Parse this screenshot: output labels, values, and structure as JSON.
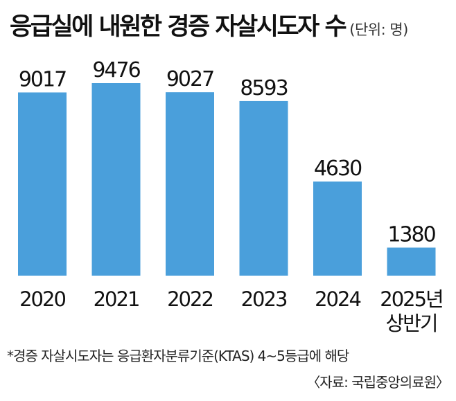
{
  "chart_data": {
    "type": "bar",
    "title": "응급실에 내원한 경증 자살시도자 수",
    "unit": "(단위: 명)",
    "categories": [
      [
        "2020"
      ],
      [
        "2021"
      ],
      [
        "2022"
      ],
      [
        "2023"
      ],
      [
        "2024"
      ],
      [
        "2025년",
        "상반기"
      ]
    ],
    "values": [
      9017,
      9476,
      9027,
      8593,
      4630,
      1380
    ],
    "bar_color": "#4a9fdb",
    "ylim": [
      0,
      10000
    ],
    "grid": false,
    "legend": "none"
  },
  "footnote": "*경증 자살시도자는 응급환자분류기준(KTAS) 4~5등급에 해당",
  "source": "〈자료: 국립중앙의료원〉"
}
